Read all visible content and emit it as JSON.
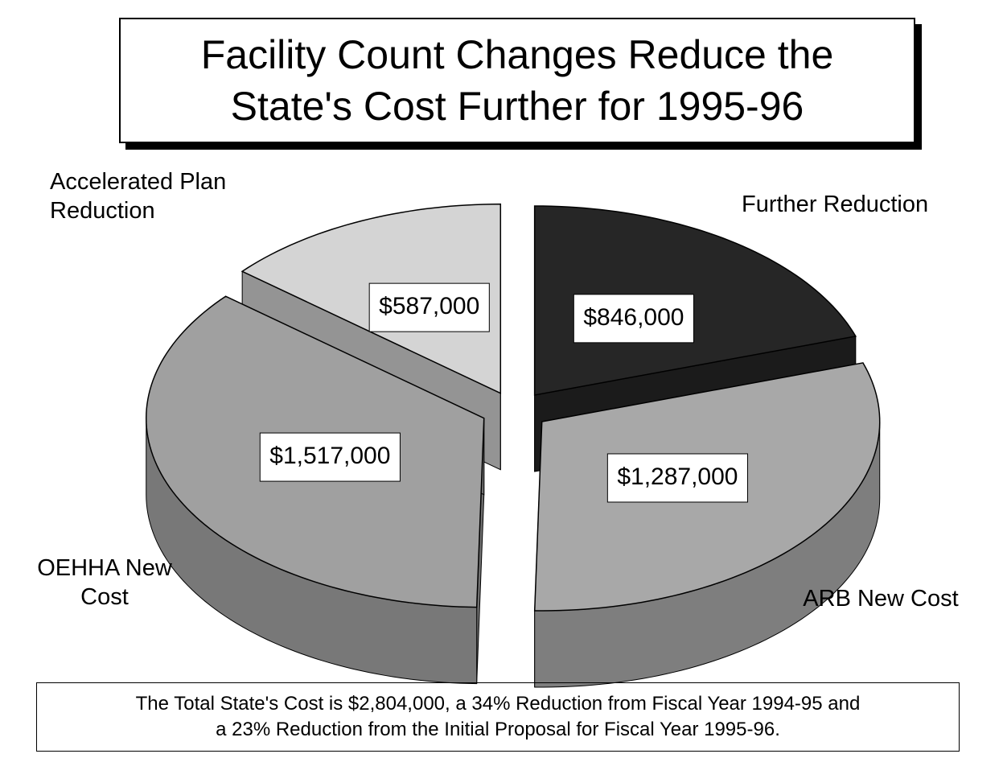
{
  "chart_data": {
    "type": "pie",
    "title": "Facility Count Changes Reduce the State's Cost Further for 1995-96",
    "categories": [
      "Further Reduction",
      "ARB New Cost",
      "OEHHA New Cost",
      "Accelerated Plan Reduction"
    ],
    "values": [
      846000,
      1287000,
      1517000,
      587000
    ],
    "value_labels": [
      "$846,000",
      "$1,287,000",
      "$1,517,000",
      "$587,000"
    ],
    "colors": [
      "#262626",
      "#a8a8a8",
      "#a0a0a0",
      "#d4d4d4"
    ],
    "footnote": "The Total State's Cost is $2,804,000, a 34% Reduction from Fiscal Year 1994-95 and a 23% Reduction from the Initial Proposal for Fiscal Year 1995-96."
  }
}
